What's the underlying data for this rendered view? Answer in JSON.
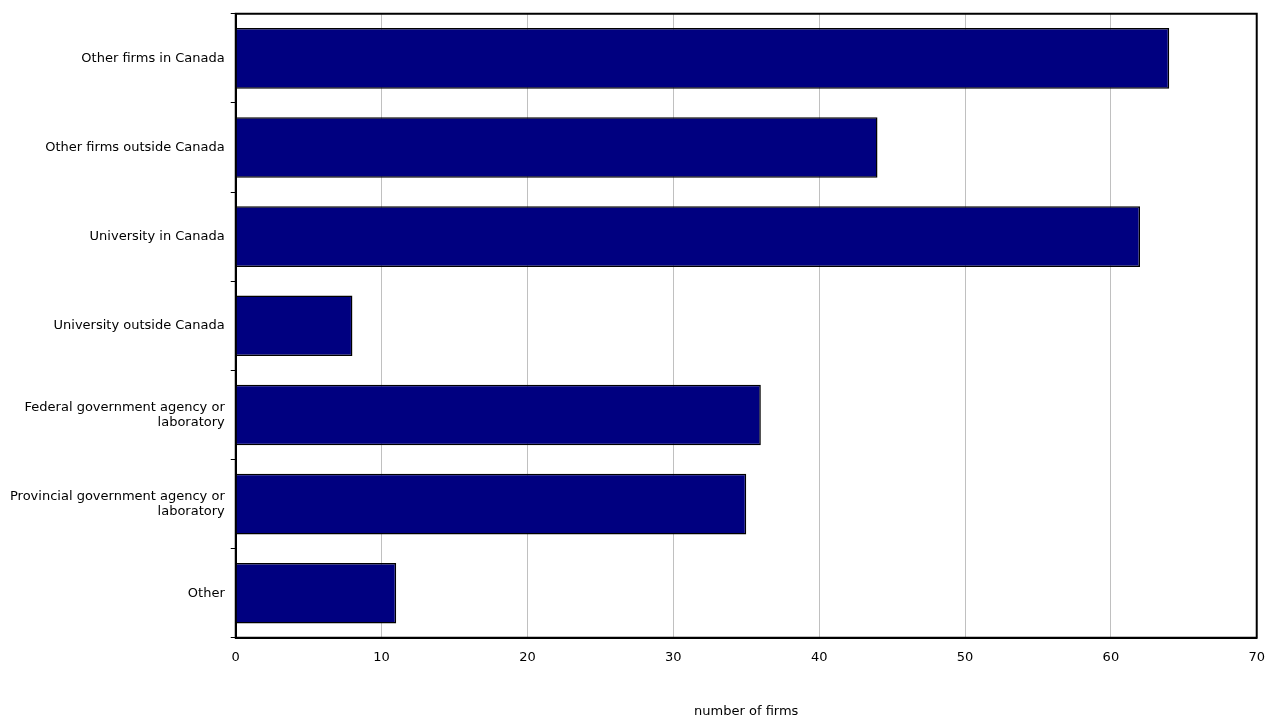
{
  "chart_data": {
    "type": "bar",
    "orientation": "horizontal",
    "xlabel": "number of firms",
    "categories": [
      "Other firms in Canada",
      "Other firms outside Canada",
      "University in Canada",
      "University outside Canada",
      "Federal government agency or laboratory",
      "Provincial government agency or laboratory",
      "Other"
    ],
    "values": [
      64,
      44,
      62,
      8,
      36,
      35,
      11
    ],
    "color": "#000080",
    "xlim": [
      0,
      70
    ],
    "xticks": [
      0,
      10,
      20,
      30,
      40,
      50,
      60,
      70
    ],
    "grid": "x",
    "legend": false
  }
}
